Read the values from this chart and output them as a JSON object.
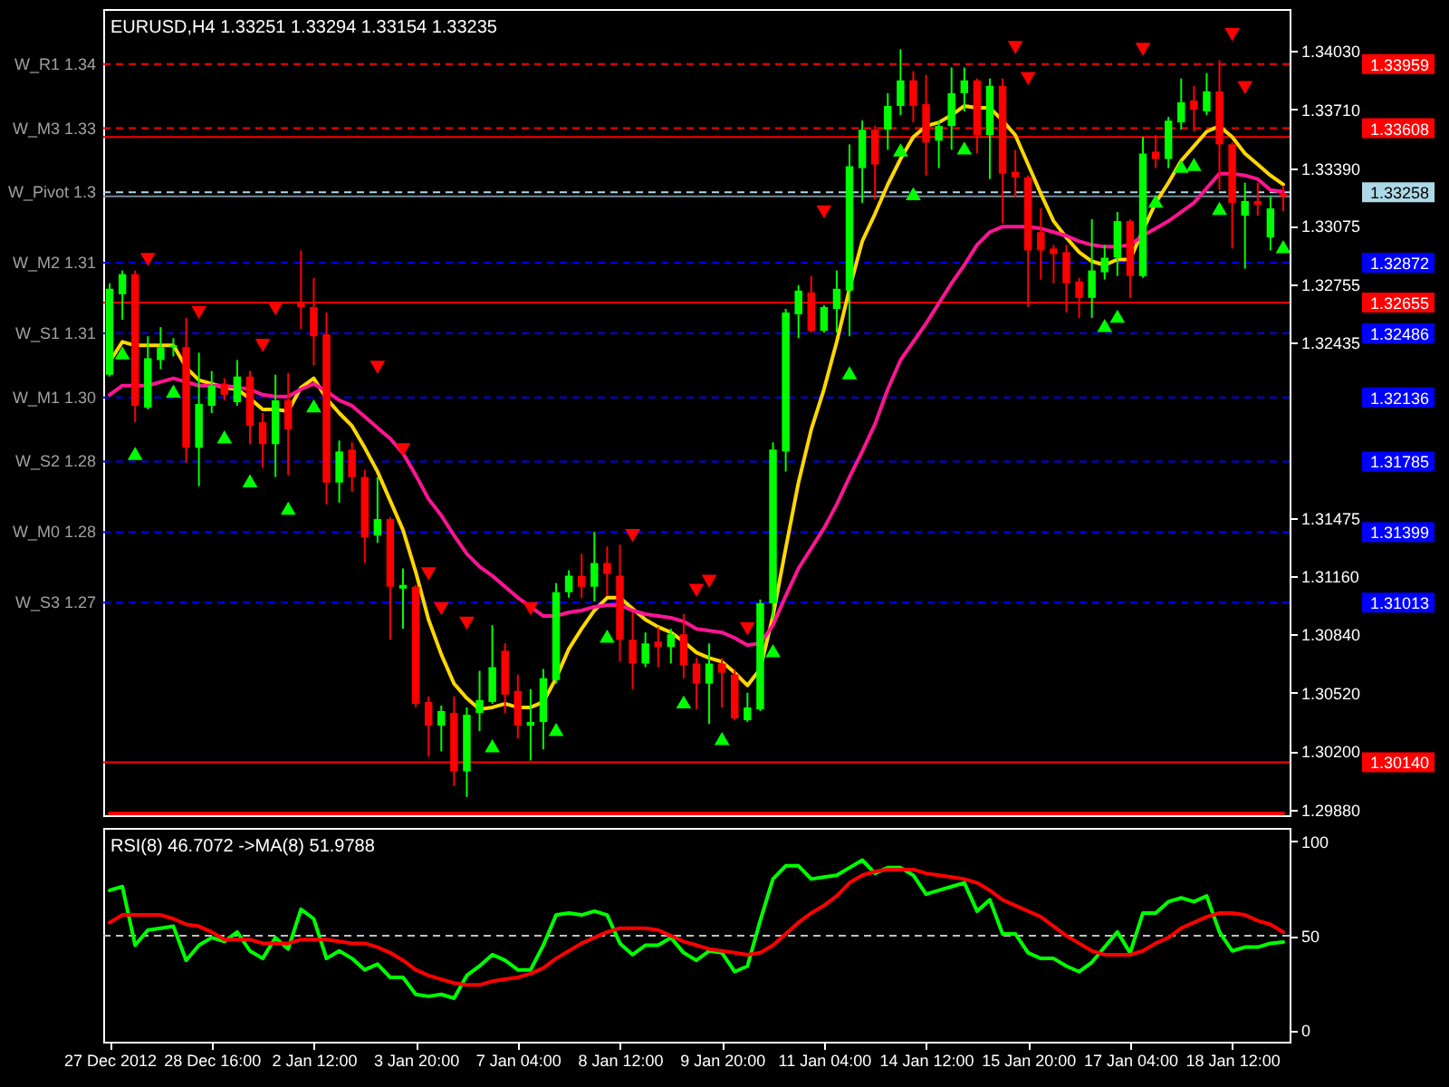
{
  "chart_data": [
    {
      "type": "candlestick",
      "title": "EURUSD,H4 1.33251 1.33294 1.33154 1.33235",
      "categories": [
        null,
        null,
        null,
        null,
        null,
        null,
        null,
        null,
        null,
        null,
        null,
        null,
        null,
        null,
        null,
        null,
        null,
        null,
        null,
        null,
        null,
        null,
        null,
        null,
        null,
        null,
        null,
        null,
        null,
        null,
        null,
        null,
        null,
        null,
        null,
        null,
        null,
        null,
        null,
        null,
        null,
        null,
        null,
        null,
        null,
        null,
        null,
        null,
        null,
        null,
        null,
        null,
        null,
        null,
        null,
        null,
        null,
        null,
        null,
        null,
        null,
        null,
        null,
        null,
        null,
        null,
        null,
        null,
        null,
        null,
        null,
        null,
        null,
        null,
        null,
        null,
        null,
        null,
        null,
        null,
        null,
        null,
        null,
        null,
        null,
        null,
        null,
        null,
        null,
        null,
        null,
        null,
        null
      ],
      "ohlc": [
        [
          1.3226,
          1.3276,
          1.3225,
          1.3273
        ],
        [
          1.327,
          1.3283,
          1.3256,
          1.3281
        ],
        [
          1.3281,
          1.3283,
          1.32,
          1.3209
        ],
        [
          1.3208,
          1.3247,
          1.3207,
          1.3235
        ],
        [
          1.3234,
          1.3252,
          1.3229,
          1.3241
        ],
        [
          1.3241,
          1.3246,
          1.3236,
          1.3242
        ],
        [
          1.3241,
          1.3257,
          1.3178,
          1.3186
        ],
        [
          1.3186,
          1.3238,
          1.3165,
          1.321
        ],
        [
          1.3209,
          1.3228,
          1.3205,
          1.322
        ],
        [
          1.3221,
          1.3224,
          1.3212,
          1.3215
        ],
        [
          1.3211,
          1.3234,
          1.3209,
          1.3225
        ],
        [
          1.3225,
          1.3228,
          1.3188,
          1.3198
        ],
        [
          1.32,
          1.3205,
          1.3175,
          1.3188
        ],
        [
          1.3188,
          1.3226,
          1.317,
          1.3212
        ],
        [
          1.3212,
          1.3227,
          1.3171,
          1.3196
        ],
        [
          1.3266,
          1.3294,
          1.3251,
          1.3263
        ],
        [
          1.3263,
          1.3279,
          1.3231,
          1.3247
        ],
        [
          1.3248,
          1.326,
          1.3155,
          1.3167
        ],
        [
          1.3167,
          1.319,
          1.3156,
          1.3184
        ],
        [
          1.3185,
          1.3189,
          1.3162,
          1.317
        ],
        [
          1.317,
          1.3174,
          1.3123,
          1.3137
        ],
        [
          1.3138,
          1.317,
          1.3134,
          1.3147
        ],
        [
          1.3147,
          1.3148,
          1.3081,
          1.311
        ],
        [
          1.3109,
          1.312,
          1.3087,
          1.3111
        ],
        [
          1.311,
          1.3111,
          1.3044,
          1.3046
        ],
        [
          1.3047,
          1.305,
          1.3017,
          1.3034
        ],
        [
          1.3034,
          1.3045,
          1.302,
          1.3042
        ],
        [
          1.3041,
          1.305,
          1.3001,
          1.3009
        ],
        [
          1.3009,
          1.3044,
          1.2995,
          1.304
        ],
        [
          1.3041,
          1.3064,
          1.3031,
          1.3048
        ],
        [
          1.3047,
          1.3089,
          1.3046,
          1.3066
        ],
        [
          1.3075,
          1.3079,
          1.3041,
          1.3051
        ],
        [
          1.3053,
          1.3062,
          1.3027,
          1.3034
        ],
        [
          1.3034,
          1.3054,
          1.3015,
          1.3036
        ],
        [
          1.3036,
          1.3065,
          1.3021,
          1.306
        ],
        [
          1.3059,
          1.3112,
          1.3057,
          1.3107
        ],
        [
          1.3107,
          1.3119,
          1.3104,
          1.3116
        ],
        [
          1.3116,
          1.3128,
          1.3104,
          1.311
        ],
        [
          1.311,
          1.314,
          1.3102,
          1.3123
        ],
        [
          1.3123,
          1.3132,
          1.3105,
          1.3117
        ],
        [
          1.3116,
          1.3133,
          1.3069,
          1.3081
        ],
        [
          1.3081,
          1.3096,
          1.3054,
          1.3068
        ],
        [
          1.3068,
          1.3085,
          1.3066,
          1.3079
        ],
        [
          1.308,
          1.3088,
          1.3066,
          1.3077
        ],
        [
          1.3077,
          1.3087,
          1.3068,
          1.3084
        ],
        [
          1.3084,
          1.3095,
          1.306,
          1.3067
        ],
        [
          1.3068,
          1.3071,
          1.3043,
          1.3057
        ],
        [
          1.3057,
          1.3079,
          1.3035,
          1.3068
        ],
        [
          1.3068,
          1.3071,
          1.3044,
          1.3063
        ],
        [
          1.3062,
          1.3065,
          1.3037,
          1.3038
        ],
        [
          1.3037,
          1.3052,
          1.3036,
          1.3044
        ],
        [
          1.3043,
          1.3103,
          1.3042,
          1.3101
        ],
        [
          1.3101,
          1.3189,
          1.3092,
          1.3185
        ],
        [
          1.3184,
          1.3262,
          1.3173,
          1.326
        ],
        [
          1.3259,
          1.3275,
          1.3246,
          1.3272
        ],
        [
          1.3271,
          1.328,
          1.3249,
          1.325
        ],
        [
          1.325,
          1.3264,
          1.3249,
          1.3263
        ],
        [
          1.3262,
          1.3283,
          1.3249,
          1.3273
        ],
        [
          1.3272,
          1.3352,
          1.3247,
          1.334
        ],
        [
          1.3339,
          1.3365,
          1.332,
          1.336
        ],
        [
          1.336,
          1.3362,
          1.3322,
          1.3341
        ],
        [
          1.336,
          1.338,
          1.3349,
          1.3373
        ],
        [
          1.3373,
          1.3404,
          1.3368,
          1.3387
        ],
        [
          1.3387,
          1.3392,
          1.3364,
          1.3373
        ],
        [
          1.3374,
          1.339,
          1.3335,
          1.3353
        ],
        [
          1.3354,
          1.3365,
          1.3339,
          1.3362
        ],
        [
          1.3362,
          1.3394,
          1.3349,
          1.338
        ],
        [
          1.338,
          1.3394,
          1.337,
          1.3387
        ],
        [
          1.3387,
          1.3388,
          1.3347,
          1.3357
        ],
        [
          1.3357,
          1.3388,
          1.3333,
          1.3384
        ],
        [
          1.3384,
          1.3388,
          1.3309,
          1.3336
        ],
        [
          1.3337,
          1.3349,
          1.3323,
          1.3334
        ],
        [
          1.3334,
          1.3335,
          1.3263,
          1.3294
        ],
        [
          1.3304,
          1.3317,
          1.3278,
          1.3294
        ],
        [
          1.3295,
          1.3297,
          1.3276,
          1.3292
        ],
        [
          1.3293,
          1.3297,
          1.326,
          1.3276
        ],
        [
          1.3277,
          1.3279,
          1.3257,
          1.3268
        ],
        [
          1.3268,
          1.3311,
          1.3257,
          1.3283
        ],
        [
          1.3282,
          1.3297,
          1.3278,
          1.329
        ],
        [
          1.329,
          1.3315,
          1.328,
          1.331
        ],
        [
          1.331,
          1.3311,
          1.3268,
          1.328
        ],
        [
          1.328,
          1.3356,
          1.3279,
          1.3347
        ],
        [
          1.3348,
          1.3357,
          1.3339,
          1.3344
        ],
        [
          1.3344,
          1.3367,
          1.3339,
          1.3365
        ],
        [
          1.3364,
          1.3388,
          1.336,
          1.3375
        ],
        [
          1.3376,
          1.3384,
          1.3359,
          1.3371
        ],
        [
          1.337,
          1.3391,
          1.3368,
          1.3381
        ],
        [
          1.3381,
          1.3398,
          1.3327,
          1.3352
        ],
        [
          1.3352,
          1.3353,
          1.3295,
          1.332
        ],
        [
          1.3313,
          1.3331,
          1.3284,
          1.3321
        ],
        [
          1.3321,
          1.3331,
          1.3313,
          1.3319
        ],
        [
          1.3301,
          1.3324,
          1.3294,
          1.3317
        ],
        [
          1.33251,
          1.33294,
          1.33154,
          1.33235
        ]
      ],
      "colors": [
        "#00ff00",
        "#00ff00",
        "#ff0000",
        "#00ff00",
        "#00ff00",
        "#00ff00",
        "#ff0000",
        "#00ff00",
        "#00ff00",
        "#ff0000",
        "#00ff00",
        "#ff0000",
        "#ff0000",
        "#00ff00",
        "#ff0000",
        "#ff0000",
        "#ff0000",
        "#ff0000",
        "#00ff00",
        "#ff0000",
        "#ff0000",
        "#00ff00",
        "#ff0000",
        "#00ff00",
        "#ff0000",
        "#ff0000",
        "#00ff00",
        "#ff0000",
        "#00ff00",
        "#00ff00",
        "#00ff00",
        "#ff0000",
        "#ff0000",
        "#00ff00",
        "#00ff00",
        "#00ff00",
        "#00ff00",
        "#ff0000",
        "#00ff00",
        "#ff0000",
        "#ff0000",
        "#ff0000",
        "#00ff00",
        "#ff0000",
        "#00ff00",
        "#ff0000",
        "#ff0000",
        "#00ff00",
        "#ff0000",
        "#ff0000",
        "#00ff00",
        "#00ff00",
        "#00ff00",
        "#00ff00",
        "#00ff00",
        "#ff0000",
        "#00ff00",
        "#00ff00",
        "#00ff00",
        "#00ff00",
        "#ff0000",
        "#00ff00",
        "#00ff00",
        "#ff0000",
        "#ff0000",
        "#00ff00",
        "#00ff00",
        "#00ff00",
        "#ff0000",
        "#00ff00",
        "#ff0000",
        "#ff0000",
        "#ff0000",
        "#ff0000",
        "#ff0000",
        "#ff0000",
        "#ff0000",
        "#00ff00",
        "#00ff00",
        "#00ff00",
        "#ff0000",
        "#00ff00",
        "#ff0000",
        "#00ff00",
        "#00ff00",
        "#ff0000",
        "#00ff00",
        "#ff0000",
        "#ff0000",
        "#00ff00",
        "#ff0000",
        "#00ff00",
        "#ff0000"
      ],
      "series": [
        {
          "type": "line",
          "color": "#ff0000",
          "values": [
            1.2986,
            1.2986,
            1.2986,
            1.2986,
            1.2986,
            1.2986,
            1.2986,
            1.2986,
            1.2986,
            1.2986,
            1.2986,
            1.2986,
            1.2986,
            1.2986,
            1.2986,
            1.2986,
            1.2986,
            1.2986,
            1.2986,
            1.2986,
            1.2986,
            1.2986,
            1.2986,
            1.2986,
            1.2986,
            1.2986,
            1.2986,
            1.2986,
            1.2986,
            1.2986,
            1.2986,
            1.2986,
            1.2986,
            1.2986,
            1.2986,
            1.2986,
            1.2986,
            1.2986,
            1.2986,
            1.2986,
            1.2986,
            1.2986,
            1.2986,
            1.2986,
            1.2986,
            1.2986,
            1.2986,
            1.2986,
            1.2986,
            1.2986,
            1.2986,
            1.2986,
            1.2986,
            1.2986,
            1.2986,
            1.2986,
            1.2986,
            1.2986,
            1.2986,
            1.2986,
            1.2986,
            1.2986,
            1.2986,
            1.2986,
            1.2986,
            1.2986,
            1.2986,
            1.2986,
            1.2986,
            1.2986,
            1.2986,
            1.2986,
            1.2986,
            1.2986,
            1.2986,
            1.2986,
            1.2986,
            1.2986,
            1.2986,
            1.2986,
            1.2986,
            1.2986,
            1.2986,
            1.2986,
            1.2986,
            1.2986,
            1.2986,
            1.2986,
            1.2986,
            1.2986,
            1.2986,
            1.2986,
            1.2986
          ]
        },
        {
          "type": "line",
          "color": "#ffd700",
          "values": [
            1.3233,
            1.3244,
            1.3242,
            1.3242,
            1.3242,
            1.3242,
            1.323,
            1.3223,
            1.3221,
            1.3219,
            1.3218,
            1.3213,
            1.3207,
            1.3207,
            1.3206,
            1.3219,
            1.3224,
            1.3213,
            1.3205,
            1.3198,
            1.3186,
            1.3173,
            1.3157,
            1.3141,
            1.3118,
            1.3092,
            1.3073,
            1.3057,
            1.3049,
            1.3043,
            1.3044,
            1.3046,
            1.3044,
            1.3044,
            1.3047,
            1.306,
            1.3076,
            1.3087,
            1.3097,
            1.3104,
            1.3104,
            1.3098,
            1.3092,
            1.3088,
            1.3085,
            1.308,
            1.3074,
            1.3071,
            1.3069,
            1.3063,
            1.3056,
            1.3065,
            1.3094,
            1.3131,
            1.3167,
            1.3196,
            1.3218,
            1.3244,
            1.3273,
            1.3299,
            1.3314,
            1.333,
            1.3344,
            1.3356,
            1.3362,
            1.3364,
            1.3368,
            1.3373,
            1.3372,
            1.3372,
            1.3365,
            1.3357,
            1.3341,
            1.3325,
            1.331,
            1.3301,
            1.3293,
            1.3288,
            1.3286,
            1.3289,
            1.3289,
            1.3305,
            1.332,
            1.3331,
            1.3343,
            1.3351,
            1.3359,
            1.3362,
            1.3356,
            1.3347,
            1.3341,
            1.3335,
            1.333
          ]
        },
        {
          "type": "line",
          "color": "#ff1493",
          "values": [
            1.3215,
            1.322,
            1.322,
            1.322,
            1.3222,
            1.3224,
            1.3222,
            1.322,
            1.322,
            1.322,
            1.3219,
            1.3218,
            1.3215,
            1.3214,
            1.3214,
            1.3218,
            1.3221,
            1.3217,
            1.3212,
            1.3209,
            1.3203,
            1.3197,
            1.3191,
            1.3183,
            1.3171,
            1.3158,
            1.3149,
            1.3138,
            1.3128,
            1.3121,
            1.3116,
            1.311,
            1.3104,
            1.3099,
            1.3094,
            1.3094,
            1.3096,
            1.3097,
            1.3099,
            1.31,
            1.31,
            1.3097,
            1.3095,
            1.3094,
            1.3093,
            1.3091,
            1.3087,
            1.3086,
            1.3085,
            1.3082,
            1.3078,
            1.3079,
            1.3089,
            1.3105,
            1.312,
            1.3131,
            1.3142,
            1.3155,
            1.317,
            1.3184,
            1.3199,
            1.3218,
            1.3234,
            1.3244,
            1.3254,
            1.3265,
            1.3276,
            1.3286,
            1.3297,
            1.3304,
            1.3307,
            1.3307,
            1.3307,
            1.3306,
            1.3304,
            1.3302,
            1.3299,
            1.3297,
            1.3296,
            1.3296,
            1.3297,
            1.3302,
            1.3306,
            1.331,
            1.3315,
            1.332,
            1.3328,
            1.3336,
            1.3336,
            1.3335,
            1.3333,
            1.3327,
            1.3326
          ]
        },
        {
          "type": "scatter",
          "color": "#ff0000",
          "marker": "triangle",
          "values": [
            null,
            null,
            null,
            1.3289,
            null,
            null,
            null,
            1.326,
            null,
            null,
            null,
            null,
            1.3242,
            1.3262,
            null,
            null,
            null,
            null,
            null,
            null,
            null,
            1.323,
            null,
            1.3185,
            null,
            1.3117,
            1.3098,
            null,
            1.309,
            null,
            null,
            null,
            null,
            1.3098,
            null,
            null,
            null,
            null,
            null,
            null,
            null,
            1.3138,
            null,
            null,
            null,
            null,
            1.3108,
            1.3113,
            null,
            null,
            1.3087,
            null,
            null,
            null,
            null,
            null,
            1.3315,
            null,
            null,
            null,
            null,
            null,
            null,
            null,
            null,
            null,
            null,
            null,
            null,
            null,
            null,
            1.3405,
            1.3388,
            null,
            null,
            null,
            null,
            null,
            null,
            null,
            null,
            1.3404,
            null,
            null,
            null,
            null,
            null,
            null,
            1.3412,
            1.3383,
            null,
            null,
            null
          ]
        },
        {
          "type": "scatter",
          "color": "#00ff00",
          "marker": "triangle",
          "values": [
            null,
            1.3238,
            1.3183,
            null,
            null,
            1.3217,
            null,
            null,
            null,
            1.3192,
            null,
            1.3168,
            null,
            null,
            1.3153,
            null,
            1.3209,
            null,
            null,
            null,
            null,
            null,
            null,
            null,
            null,
            null,
            null,
            null,
            null,
            null,
            1.3023,
            null,
            null,
            null,
            null,
            1.3032,
            null,
            null,
            null,
            1.3083,
            null,
            null,
            null,
            null,
            null,
            1.3047,
            null,
            null,
            1.3027,
            null,
            null,
            null,
            1.3075,
            null,
            null,
            null,
            null,
            null,
            1.3227,
            null,
            null,
            null,
            1.3349,
            1.3325,
            null,
            null,
            null,
            1.335,
            null,
            null,
            null,
            null,
            null,
            null,
            null,
            null,
            null,
            null,
            1.3253,
            1.3258,
            null,
            null,
            1.3321,
            null,
            1.334,
            1.3341,
            null,
            1.3317,
            null,
            null,
            null,
            null,
            1.3296
          ]
        }
      ],
      "ylim": [
        1.2985,
        1.3426
      ],
      "yticks": [
        {
          "value": 1.3403,
          "label": "1.34030"
        },
        {
          "value": 1.3371,
          "label": "1.33710"
        },
        {
          "value": 1.3339,
          "label": "1.33390"
        },
        {
          "value": 1.33075,
          "label": "1.33075"
        },
        {
          "value": 1.32755,
          "label": "1.32755"
        },
        {
          "value": 1.32435,
          "label": "1.32435"
        },
        {
          "value": 1.31475,
          "label": "1.31475"
        },
        {
          "value": 1.3116,
          "label": "1.31160"
        },
        {
          "value": 1.3084,
          "label": "1.30840"
        },
        {
          "value": 1.3052,
          "label": "1.30520"
        },
        {
          "value": 1.302,
          "label": "1.30200"
        },
        {
          "value": 1.2988,
          "label": "1.29880"
        }
      ],
      "y2lim": [
        1.2985,
        1.3426
      ],
      "y2ticks": [
        {
          "value": 1.33959,
          "label": "1.33959"
        },
        {
          "value": 1.33608,
          "label": "1.33608"
        },
        {
          "value": 1.33258,
          "label": "1.33258"
        },
        {
          "value": 1.32872,
          "label": "1.32872"
        },
        {
          "value": 1.32655,
          "label": "1.32655"
        },
        {
          "value": 1.32486,
          "label": "1.32486"
        },
        {
          "value": 1.32136,
          "label": "1.32136"
        },
        {
          "value": 1.31785,
          "label": "1.31785"
        },
        {
          "value": 1.31399,
          "label": "1.31399"
        },
        {
          "value": 1.31013,
          "label": "1.31013"
        },
        {
          "value": 1.3014,
          "label": "1.30140"
        }
      ],
      "ref_lines": [
        {
          "axis": "y",
          "value": 1.33959,
          "label": "W_R1 1.34",
          "color": "#ff0000",
          "line_style": "dashed"
        },
        {
          "axis": "y",
          "value": 1.33608,
          "label": "W_M3 1.33",
          "color": "#ff0000",
          "line_style": "dashed"
        },
        {
          "axis": "y",
          "value": 1.3356,
          "color": "#ff0000"
        },
        {
          "axis": "y",
          "value": 1.33258,
          "label": "W_Pivot 1.3",
          "color": "#add8e6",
          "line_style": "dashed"
        },
        {
          "axis": "y",
          "value": 1.33235,
          "color": "#778899"
        },
        {
          "axis": "y",
          "value": 1.32872,
          "label": "W_M2 1.31",
          "color": "#0000ff",
          "line_style": "dashed"
        },
        {
          "axis": "y",
          "value": 1.32655,
          "color": "#ff0000"
        },
        {
          "axis": "y",
          "value": 1.32486,
          "label": "W_S1 1.31",
          "color": "#0000ff",
          "line_style": "dashed"
        },
        {
          "axis": "y",
          "value": 1.32136,
          "label": "W_M1 1.30",
          "color": "#0000ff",
          "line_style": "dashed"
        },
        {
          "axis": "y",
          "value": 1.31785,
          "label": "W_S2 1.28",
          "color": "#0000ff",
          "line_style": "dashed"
        },
        {
          "axis": "y",
          "value": 1.31399,
          "label": "W_M0 1.28",
          "color": "#0000ff",
          "line_style": "dashed"
        },
        {
          "axis": "y",
          "value": 1.31013,
          "label": "W_S3 1.27",
          "color": "#0000ff",
          "line_style": "dashed"
        },
        {
          "axis": "y",
          "value": 1.3014,
          "color": "#ff0000"
        }
      ]
    },
    {
      "type": "line",
      "title": "RSI(8) 46.7072 ->MA(8) 51.9788",
      "categories": [
        "27 Dec 2012",
        null,
        null,
        null,
        null,
        null,
        null,
        null,
        "28 Dec 16:00",
        null,
        null,
        null,
        null,
        null,
        null,
        null,
        "2 Jan 12:00",
        null,
        null,
        null,
        null,
        null,
        null,
        null,
        "3 Jan 20:00",
        null,
        null,
        null,
        null,
        null,
        null,
        null,
        "7 Jan 04:00",
        null,
        null,
        null,
        null,
        null,
        null,
        null,
        "8 Jan 12:00",
        null,
        null,
        null,
        null,
        null,
        null,
        null,
        "9 Jan 20:00",
        null,
        null,
        null,
        null,
        null,
        null,
        null,
        "11 Jan 04:00",
        null,
        null,
        null,
        null,
        null,
        null,
        null,
        "14 Jan 12:00",
        null,
        null,
        null,
        null,
        null,
        null,
        null,
        "15 Jan 20:00",
        null,
        null,
        null,
        null,
        null,
        null,
        null,
        "17 Jan 04:00",
        null,
        null,
        null,
        null,
        null,
        null,
        null,
        "18 Jan 12:00",
        null,
        null,
        null,
        null
      ],
      "series": [
        {
          "color": "#00ff00",
          "values": [
            74,
            76,
            45,
            53,
            54,
            55,
            37,
            45,
            49,
            47,
            52,
            42,
            38,
            49,
            43,
            64,
            59,
            38,
            42,
            38,
            32,
            35,
            28,
            28,
            19,
            18,
            19,
            17,
            29,
            34,
            40,
            37,
            32,
            32,
            45,
            61,
            62,
            61,
            63,
            61,
            46,
            40,
            45,
            45,
            49,
            41,
            37,
            42,
            41,
            31,
            34,
            58,
            80,
            87,
            87,
            80,
            81,
            82,
            86,
            90,
            83,
            86,
            86,
            82,
            72,
            74,
            76,
            78,
            63,
            69,
            51,
            51,
            41,
            38,
            38,
            34,
            31,
            36,
            44,
            52,
            41,
            62,
            62,
            68,
            70,
            68,
            71,
            52,
            42,
            44,
            44,
            46,
            46.7072
          ]
        },
        {
          "color": "#ff0000",
          "values": [
            57,
            61,
            61,
            61,
            61,
            59,
            56,
            55,
            52,
            48,
            48,
            48,
            46,
            46,
            46,
            48,
            48,
            48,
            47,
            46,
            46,
            44,
            41,
            37,
            32,
            29,
            27,
            25,
            24,
            24,
            26,
            27,
            28,
            30,
            33,
            38,
            42,
            46,
            49,
            52,
            54,
            54,
            54,
            53,
            50,
            47,
            45,
            43,
            42,
            41,
            40,
            41,
            45,
            51,
            57,
            62,
            66,
            71,
            78,
            82,
            84,
            85,
            85,
            85,
            83,
            82,
            81,
            80,
            78,
            74,
            69,
            66,
            63,
            60,
            55,
            50,
            46,
            42,
            40,
            40,
            40,
            42,
            46,
            49,
            54,
            57,
            60,
            62,
            62,
            61,
            58,
            56,
            51.9788
          ]
        }
      ],
      "ylim": [
        -6,
        107
      ],
      "yticks": [
        0,
        50,
        100
      ],
      "ref_lines": [
        {
          "axis": "y",
          "value": 50,
          "color": "#c0c0c0",
          "line_style": "dashed"
        }
      ]
    }
  ]
}
